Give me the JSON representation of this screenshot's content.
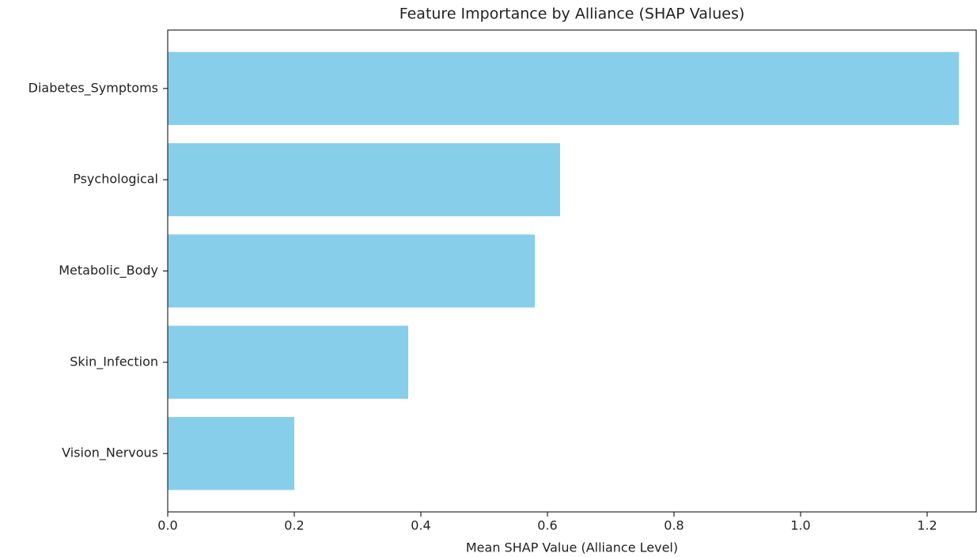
{
  "chart_data": {
    "type": "barh",
    "title": "Feature Importance by Alliance (SHAP Values)",
    "xlabel": "Mean SHAP Value (Alliance Level)",
    "categories": [
      "Diabetes_Symptoms",
      "Psychological",
      "Metabolic_Body",
      "Skin_Infection",
      "Vision_Nervous"
    ],
    "values": [
      1.25,
      0.62,
      0.58,
      0.38,
      0.2
    ],
    "color": "#87ceeb",
    "xlim": [
      0,
      1.2775
    ],
    "xticks": [
      {
        "value": 0,
        "label": "0.0"
      },
      0.2,
      0.4,
      0.6,
      0.8,
      {
        "value": 1,
        "label": "1.0"
      },
      1.2
    ]
  }
}
